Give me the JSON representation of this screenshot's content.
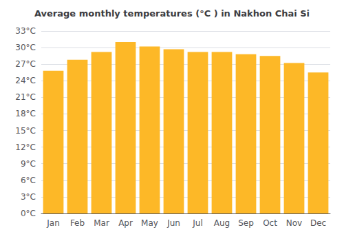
{
  "chart_data": {
    "type": "bar",
    "title": "Average monthly temperatures (°C ) in Nakhon Chai Si",
    "categories": [
      "Jan",
      "Feb",
      "Mar",
      "Apr",
      "May",
      "Jun",
      "Jul",
      "Aug",
      "Sep",
      "Oct",
      "Nov",
      "Dec"
    ],
    "values": [
      25.8,
      27.8,
      29.2,
      31.0,
      30.2,
      29.7,
      29.2,
      29.2,
      28.8,
      28.5,
      27.2,
      25.5
    ],
    "color": "#FDB827",
    "ylim": [
      0,
      33
    ],
    "yticks": [
      {
        "value": 0,
        "label": "0°C"
      },
      {
        "value": 3,
        "label": "3°C"
      },
      {
        "value": 6,
        "label": "6°C"
      },
      {
        "value": 9,
        "label": "9°C"
      },
      {
        "value": 12,
        "label": "12°C"
      },
      {
        "value": 15,
        "label": "15°C"
      },
      {
        "value": 18,
        "label": "18°C"
      },
      {
        "value": 21,
        "label": "21°C"
      },
      {
        "value": 24,
        "label": "24°C"
      },
      {
        "value": 27,
        "label": "27°C"
      },
      {
        "value": 30,
        "label": "30°C"
      },
      {
        "value": 33,
        "label": "33°C"
      }
    ],
    "grid": true
  }
}
